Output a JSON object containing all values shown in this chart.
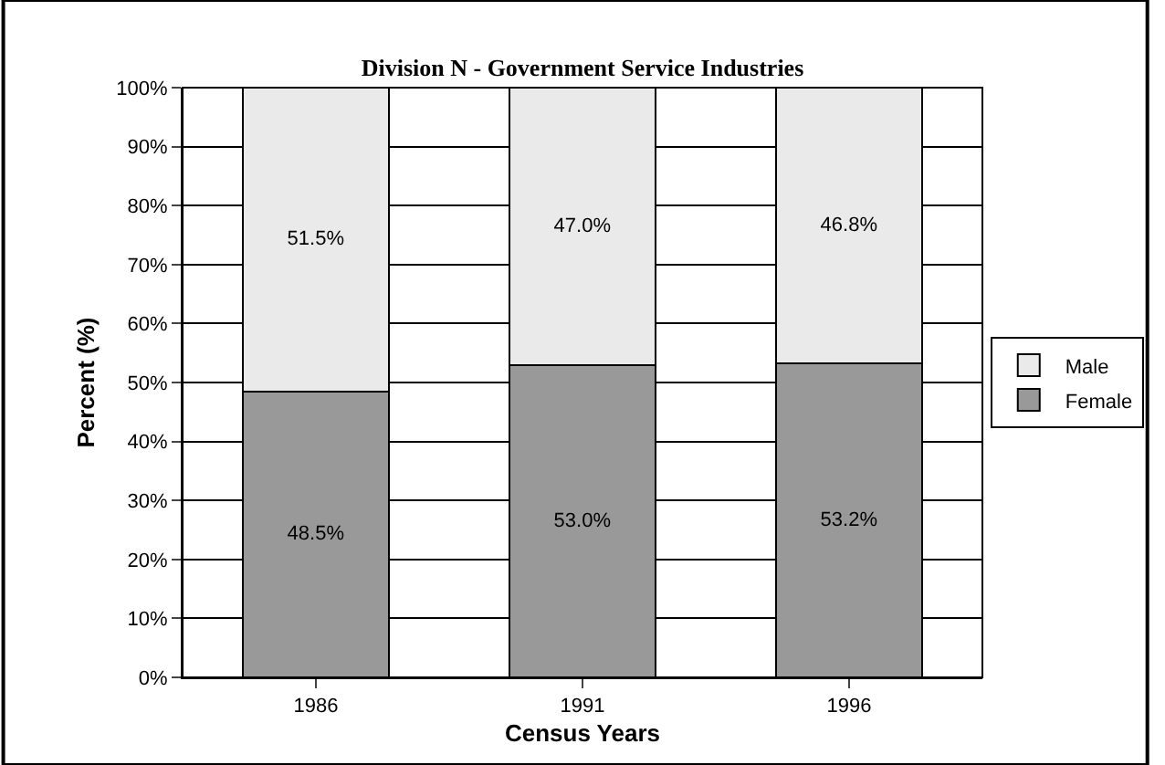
{
  "chart_data": {
    "type": "bar",
    "title": "Division N - Government Service Industries",
    "xlabel": "Census Years",
    "ylabel": "Percent (%)",
    "categories": [
      "1986",
      "1991",
      "1996"
    ],
    "stacked": true,
    "series": [
      {
        "name": "Female",
        "color": "#999999",
        "values": [
          48.5,
          53.0,
          53.2
        ],
        "value_labels": [
          "48.5%",
          "53.0%",
          "53.2%"
        ]
      },
      {
        "name": "Male",
        "color": "#eaeaea",
        "values": [
          51.5,
          47.0,
          46.8
        ],
        "value_labels": [
          "51.5%",
          "47.0%",
          "46.8%"
        ]
      }
    ],
    "ylim": [
      0,
      100
    ],
    "yticks": [
      {
        "value": 0,
        "label": "0%"
      },
      {
        "value": 10,
        "label": "10%"
      },
      {
        "value": 20,
        "label": "20%"
      },
      {
        "value": 30,
        "label": "30%"
      },
      {
        "value": 40,
        "label": "40%"
      },
      {
        "value": 50,
        "label": "50%"
      },
      {
        "value": 60,
        "label": "60%"
      },
      {
        "value": 70,
        "label": "70%"
      },
      {
        "value": 80,
        "label": "80%"
      },
      {
        "value": 90,
        "label": "90%"
      },
      {
        "value": 100,
        "label": "100%"
      }
    ],
    "grid": "y",
    "legend": "right"
  }
}
